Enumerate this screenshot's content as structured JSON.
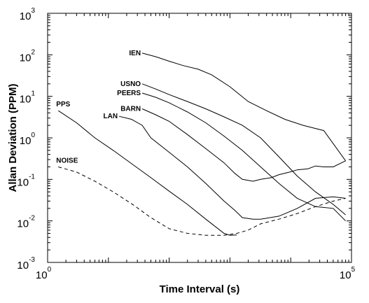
{
  "chart_data": {
    "type": "line",
    "xlabel": "Time Interval (s)",
    "ylabel": "Allan Deviation (PPM)",
    "x_scale": "log",
    "y_scale": "log",
    "xlim": [
      1,
      100000
    ],
    "ylim": [
      0.001,
      1000
    ],
    "grid": false,
    "legend": "none",
    "x_tick_labels": [
      {
        "value": 1,
        "base": "10",
        "exp": "0"
      },
      {
        "value": 100000,
        "base": "10",
        "exp": "5"
      }
    ],
    "y_tick_labels": [
      {
        "value": 0.001,
        "base": "10",
        "exp": "-3"
      },
      {
        "value": 0.01,
        "base": "10",
        "exp": "-2"
      },
      {
        "value": 0.1,
        "base": "10",
        "exp": "-1"
      },
      {
        "value": 1,
        "base": "10",
        "exp": "0"
      },
      {
        "value": 10,
        "base": "10",
        "exp": "1"
      },
      {
        "value": 100,
        "base": "10",
        "exp": "2"
      },
      {
        "value": 1000,
        "base": "10",
        "exp": "3"
      }
    ],
    "series": [
      {
        "name": "IEN",
        "style": "solid",
        "x": [
          36,
          60,
          100,
          170,
          300,
          500,
          1000,
          2000,
          4000,
          8000,
          16000,
          35000,
          80000
        ],
        "y": [
          110,
          90,
          70,
          55,
          45,
          33,
          17,
          7.5,
          4.5,
          2.8,
          2.0,
          1.5,
          0.28
        ]
      },
      {
        "name": "USNO",
        "style": "solid",
        "x": [
          36,
          60,
          100,
          200,
          400,
          800,
          1600,
          3200,
          6400,
          12800,
          25600,
          50000,
          80000
        ],
        "y": [
          20,
          15,
          11,
          7.5,
          5,
          3.2,
          2.0,
          1.0,
          0.35,
          0.12,
          0.05,
          0.025,
          0.014
        ]
      },
      {
        "name": "PEERS",
        "style": "solid",
        "x": [
          36,
          60,
          100,
          200,
          400,
          800,
          1600,
          3200,
          6400,
          12800,
          25600,
          50000,
          80000
        ],
        "y": [
          12,
          9.5,
          7.0,
          4.2,
          2.3,
          1.1,
          0.5,
          0.2,
          0.08,
          0.035,
          0.022,
          0.02,
          0.01
        ]
      },
      {
        "name": "BARN",
        "style": "solid",
        "x": [
          36,
          60,
          100,
          200,
          400,
          800,
          1200,
          1600,
          2400,
          3200,
          4800,
          6400,
          9600,
          12800,
          19200,
          25600,
          35000,
          50000,
          80000
        ],
        "y": [
          5.0,
          3.6,
          2.5,
          1.2,
          0.55,
          0.25,
          0.14,
          0.1,
          0.09,
          0.1,
          0.11,
          0.13,
          0.15,
          0.17,
          0.18,
          0.21,
          0.2,
          0.2,
          0.28
        ]
      },
      {
        "name": "LAN",
        "style": "solid",
        "x": [
          15,
          24,
          36,
          50,
          100,
          200,
          400,
          800,
          1200,
          1600,
          2400,
          3200,
          6400,
          12800,
          25600,
          50000,
          80000
        ],
        "y": [
          3.3,
          2.8,
          2.0,
          1.0,
          0.45,
          0.2,
          0.08,
          0.03,
          0.018,
          0.012,
          0.011,
          0.011,
          0.013,
          0.02,
          0.035,
          0.038,
          0.035
        ]
      },
      {
        "name": "PPS",
        "style": "solid",
        "x": [
          1.5,
          3,
          6,
          12,
          25,
          50,
          100,
          200,
          400,
          800,
          1000,
          1300
        ],
        "y": [
          4.5,
          2.3,
          1.0,
          0.5,
          0.23,
          0.11,
          0.052,
          0.025,
          0.011,
          0.005,
          0.0045,
          0.0046
        ]
      },
      {
        "name": "NOISE",
        "style": "dashed",
        "x": [
          1.5,
          3,
          6,
          12,
          25,
          50,
          100,
          200,
          400,
          800,
          1300,
          2000,
          3200,
          6400,
          12800,
          25600,
          50000,
          80000
        ],
        "y": [
          0.2,
          0.15,
          0.09,
          0.05,
          0.025,
          0.012,
          0.0065,
          0.005,
          0.0045,
          0.0045,
          0.005,
          0.006,
          0.0085,
          0.011,
          0.015,
          0.022,
          0.03,
          0.035
        ]
      }
    ]
  }
}
